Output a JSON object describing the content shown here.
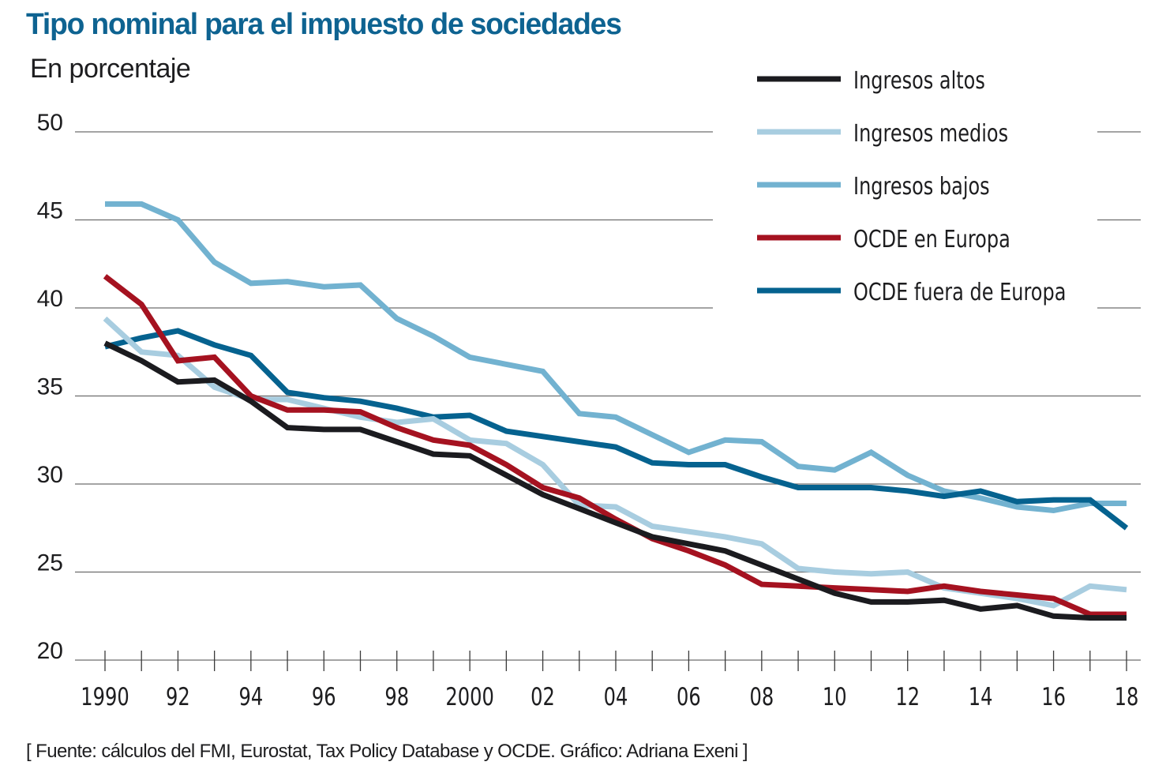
{
  "header": {
    "title": "Tipo nominal para el impuesto de sociedades",
    "subtitle": "En porcentaje"
  },
  "footer": {
    "source": "[ Fuente: cálculos del FMI, Eurostat, Tax Policy Database y OCDE. Gráfico: Adriana Exeni ]"
  },
  "chart_data": {
    "type": "line",
    "title": "Tipo nominal para el impuesto de sociedades",
    "subtitle": "En porcentaje",
    "xlabel": "",
    "ylabel": "En porcentaje",
    "ylim": [
      20,
      50
    ],
    "yticks": [
      50,
      45,
      40,
      35,
      30,
      25,
      20
    ],
    "x": [
      1990,
      1991,
      1992,
      1993,
      1994,
      1995,
      1996,
      1997,
      1998,
      1999,
      2000,
      2001,
      2002,
      2003,
      2004,
      2005,
      2006,
      2007,
      2008,
      2009,
      2010,
      2011,
      2012,
      2013,
      2014,
      2015,
      2016,
      2017,
      2018
    ],
    "xticks": [
      {
        "year": 1990,
        "label": "1990"
      },
      {
        "year": 1992,
        "label": "92"
      },
      {
        "year": 1994,
        "label": "94"
      },
      {
        "year": 1996,
        "label": "96"
      },
      {
        "year": 1998,
        "label": "98"
      },
      {
        "year": 2000,
        "label": "2000"
      },
      {
        "year": 2002,
        "label": "02"
      },
      {
        "year": 2004,
        "label": "04"
      },
      {
        "year": 2006,
        "label": "06"
      },
      {
        "year": 2008,
        "label": "08"
      },
      {
        "year": 2010,
        "label": "10"
      },
      {
        "year": 2012,
        "label": "12"
      },
      {
        "year": 2014,
        "label": "14"
      },
      {
        "year": 2016,
        "label": "16"
      },
      {
        "year": 2018,
        "label": "18"
      }
    ],
    "grid": true,
    "legend_position": "top-right",
    "series": [
      {
        "name": "Ingresos bajos",
        "color": "#72b2d0",
        "values": [
          45.9,
          45.9,
          45.0,
          42.6,
          41.4,
          41.5,
          41.2,
          41.3,
          39.4,
          38.4,
          37.2,
          36.8,
          36.4,
          34.0,
          33.8,
          32.8,
          31.8,
          32.5,
          32.4,
          31.0,
          30.8,
          31.8,
          30.5,
          29.6,
          29.2,
          28.7,
          28.5,
          28.9,
          28.9
        ]
      },
      {
        "name": "OCDE fuera de Europa",
        "color": "#05628f",
        "values": [
          37.8,
          38.3,
          38.7,
          37.9,
          37.3,
          35.2,
          34.9,
          34.7,
          34.3,
          33.8,
          33.9,
          33.0,
          32.7,
          32.4,
          32.1,
          31.2,
          31.1,
          31.1,
          30.4,
          29.8,
          29.8,
          29.8,
          29.6,
          29.3,
          29.6,
          29.0,
          29.1,
          29.1,
          27.5
        ]
      },
      {
        "name": "Ingresos medios",
        "color": "#a8cde0",
        "values": [
          39.4,
          37.5,
          37.3,
          35.5,
          34.8,
          34.8,
          34.3,
          33.8,
          33.5,
          33.7,
          32.5,
          32.3,
          31.1,
          28.8,
          28.7,
          27.6,
          27.3,
          27.0,
          26.6,
          25.2,
          25.0,
          24.9,
          25.0,
          24.1,
          23.8,
          23.5,
          23.1,
          24.2,
          24.0
        ]
      },
      {
        "name": "OCDE en Europa",
        "color": "#a51220",
        "values": [
          41.8,
          40.2,
          37.0,
          37.2,
          35.0,
          34.2,
          34.2,
          34.1,
          33.2,
          32.5,
          32.2,
          31.1,
          29.8,
          29.2,
          28.0,
          26.9,
          26.2,
          25.4,
          24.3,
          24.2,
          24.1,
          24.0,
          23.9,
          24.2,
          23.9,
          23.7,
          23.5,
          22.6,
          22.6
        ]
      },
      {
        "name": "Ingresos altos",
        "color": "#1b1b1f",
        "values": [
          38.0,
          37.0,
          35.8,
          35.9,
          34.7,
          33.2,
          33.1,
          33.1,
          32.4,
          31.7,
          31.6,
          30.5,
          29.4,
          28.6,
          27.8,
          27.0,
          26.6,
          26.2,
          25.4,
          24.6,
          23.8,
          23.3,
          23.3,
          23.4,
          22.9,
          23.1,
          22.5,
          22.4,
          22.4
        ]
      }
    ],
    "legend_order": [
      "Ingresos altos",
      "Ingresos medios",
      "Ingresos bajos",
      "OCDE en Europa",
      "OCDE fuera de Europa"
    ]
  }
}
